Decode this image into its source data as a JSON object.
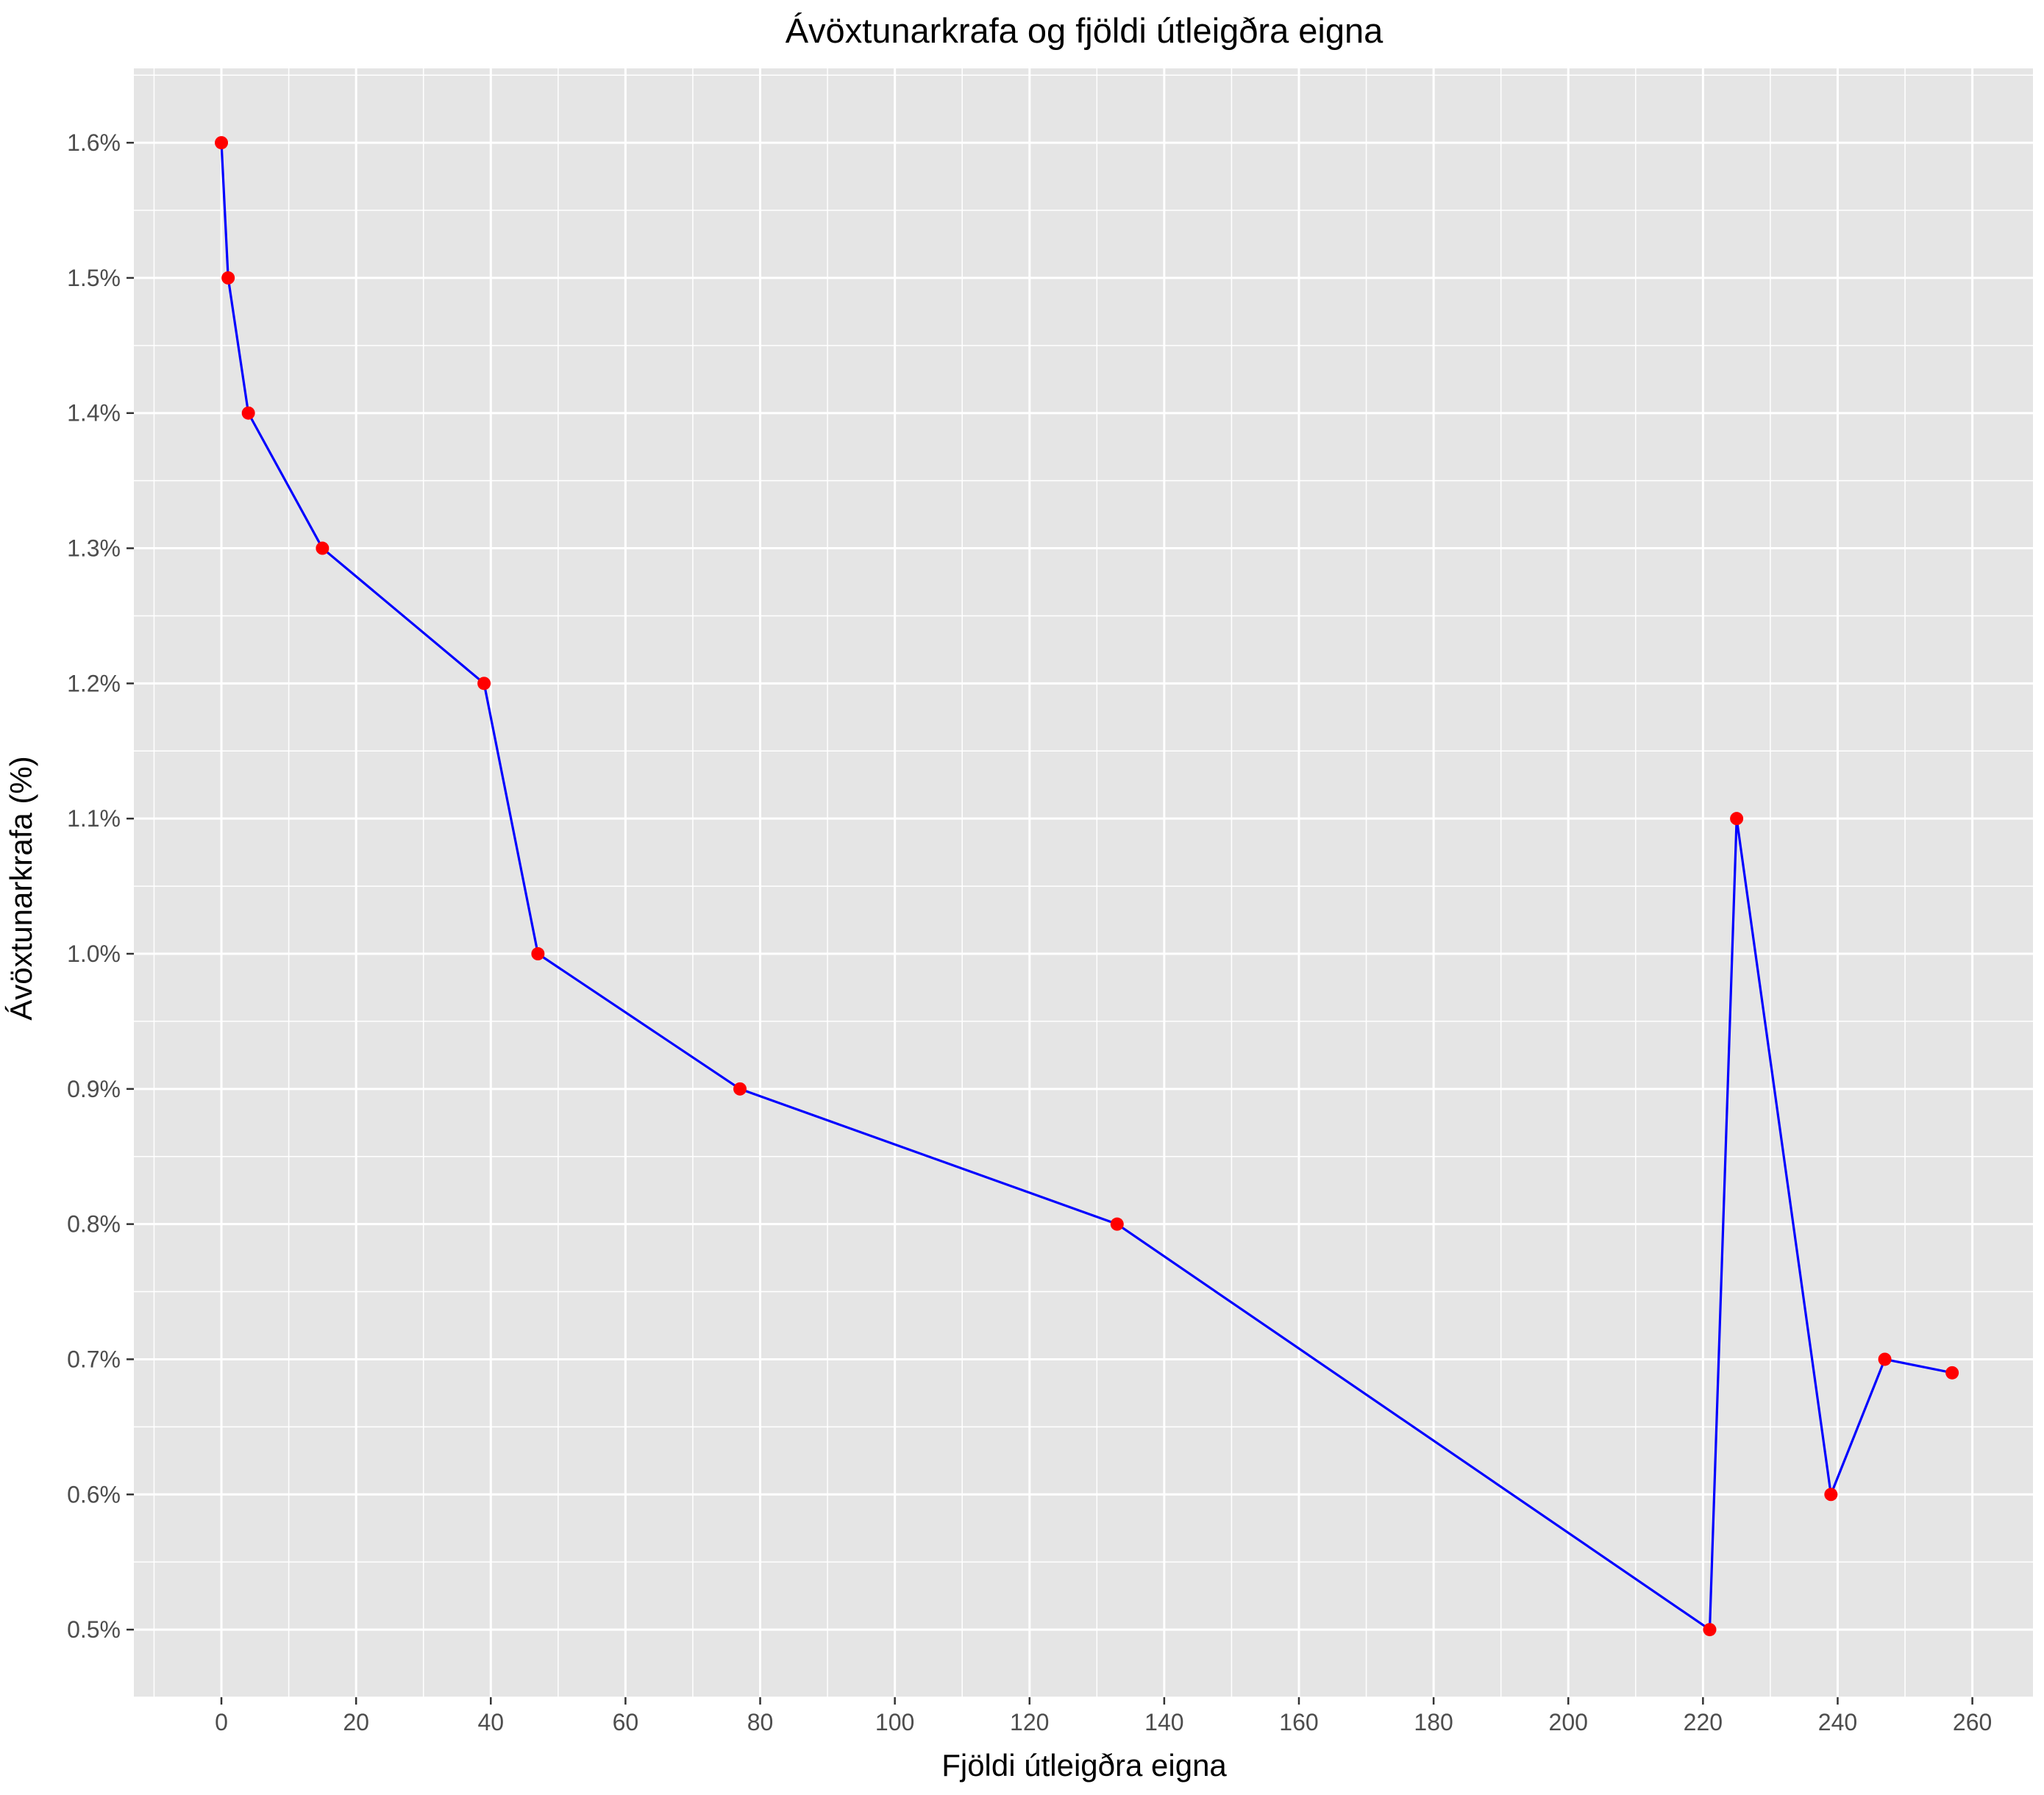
{
  "chart_data": {
    "type": "line",
    "title": "Ávöxtunarkrafa og fjöldi útleigðra eigna",
    "xlabel": "Fjöldi útleigðra eigna",
    "ylabel": "Ávöxtunarkrafa (%)",
    "xlim": [
      -13,
      269
    ],
    "ylim": [
      0.45,
      1.655
    ],
    "x_ticks": [
      0,
      20,
      40,
      60,
      80,
      100,
      120,
      140,
      160,
      180,
      200,
      220,
      240,
      260
    ],
    "x_tick_labels": [
      "0",
      "20",
      "40",
      "60",
      "80",
      "100",
      "120",
      "140",
      "160",
      "180",
      "200",
      "220",
      "240",
      "260"
    ],
    "y_ticks": [
      0.5,
      0.6,
      0.7,
      0.8,
      0.9,
      1.0,
      1.1,
      1.2,
      1.3,
      1.4,
      1.5,
      1.6
    ],
    "y_tick_labels": [
      "0.5%",
      "0.6%",
      "0.7%",
      "0.8%",
      "0.9%",
      "1.0%",
      "1.1%",
      "1.2%",
      "1.3%",
      "1.4%",
      "1.5%",
      "1.6%"
    ],
    "grid": true,
    "line_color": "#0000ff",
    "point_color": "#ff0000",
    "panel_color": "#e5e5e5",
    "points": [
      {
        "x": 0,
        "y": 1.6
      },
      {
        "x": 1,
        "y": 1.5
      },
      {
        "x": 4,
        "y": 1.4
      },
      {
        "x": 15,
        "y": 1.3
      },
      {
        "x": 39,
        "y": 1.2
      },
      {
        "x": 47,
        "y": 1.0
      },
      {
        "x": 77,
        "y": 0.9
      },
      {
        "x": 133,
        "y": 0.8
      },
      {
        "x": 221,
        "y": 0.5
      },
      {
        "x": 225,
        "y": 1.1
      },
      {
        "x": 239,
        "y": 0.6
      },
      {
        "x": 247,
        "y": 0.7
      },
      {
        "x": 257,
        "y": 0.69
      }
    ]
  }
}
